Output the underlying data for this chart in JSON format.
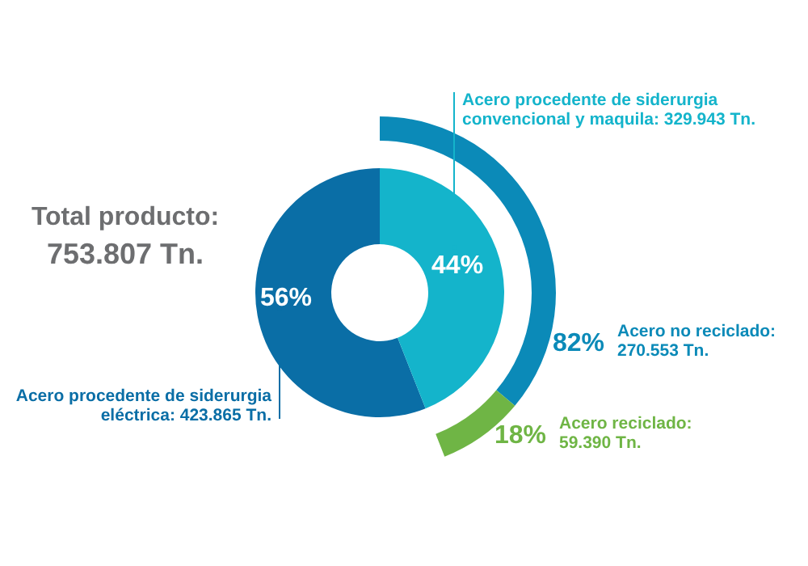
{
  "chart_data": [
    {
      "type": "donut",
      "title": "Total producto:",
      "subtitle": "753.807 Tn.",
      "categories": [
        "Acero procedente de siderurgia eléctrica: 423.865 Tn.",
        "Acero procedente de siderurgia convencional y maquila: 329.943 Tn."
      ],
      "values": [
        56,
        44
      ],
      "value_labels": [
        "56%",
        "44%"
      ],
      "colors": [
        "#0a6ea6",
        "#14b4cb"
      ]
    },
    {
      "type": "donut",
      "categories": [
        "Acero no reciclado: 270.553 Tn.",
        "Acero reciclado: 59.390 Tn."
      ],
      "values": [
        82,
        18
      ],
      "value_labels": [
        "82%",
        "18%"
      ],
      "colors": [
        "#0b8ab8",
        "#6fb545"
      ]
    }
  ]
}
